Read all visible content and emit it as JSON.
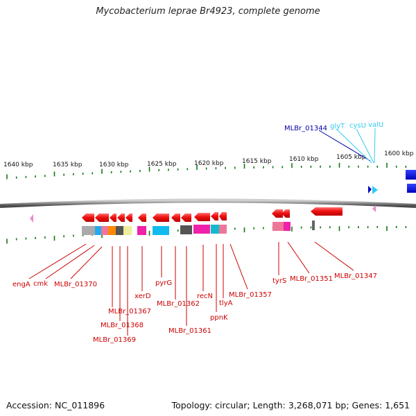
{
  "header": {
    "title": "Mycobacterium leprae Br4923, complete genome"
  },
  "footer": {
    "accession": "Accession: NC_011896",
    "topology": "Topology: circular; Length: 3,268,071 bp; Genes: 1,651"
  },
  "ruler": {
    "labels": [
      "1640 kbp",
      "1635 kbp",
      "1630 kbp",
      "1625 kbp",
      "1620 kbp",
      "1615 kbp",
      "1610 kbp",
      "1605 kbp",
      "1600 kbp"
    ]
  },
  "colors": {
    "gene_red": "#ee1111",
    "label_red": "#cc0000",
    "rna_cyan": "#33ccee",
    "navy": "#0000aa",
    "pink": "#ee88cc",
    "tick_green": "#117711",
    "backbone": "#7a7a7a"
  },
  "blue_labels": [
    {
      "text": "MLBr_01344",
      "color": "#0000aa"
    },
    {
      "text": "glyT",
      "color": "#33ccee"
    },
    {
      "text": "cysU",
      "color": "#33ccee"
    },
    {
      "text": "valU",
      "color": "#33ccee"
    }
  ],
  "gene_labels": [
    "engA",
    "cmk",
    "MLBr_01370",
    "MLBr_01367",
    "MLBr_01368",
    "MLBr_01369",
    "xerD",
    "pyrG",
    "MLBr_01362",
    "MLBr_01361",
    "recN",
    "ppnK",
    "tlyA",
    "MLBr_01357",
    "tyrS",
    "MLBr_01351",
    "MLBr_01347"
  ]
}
